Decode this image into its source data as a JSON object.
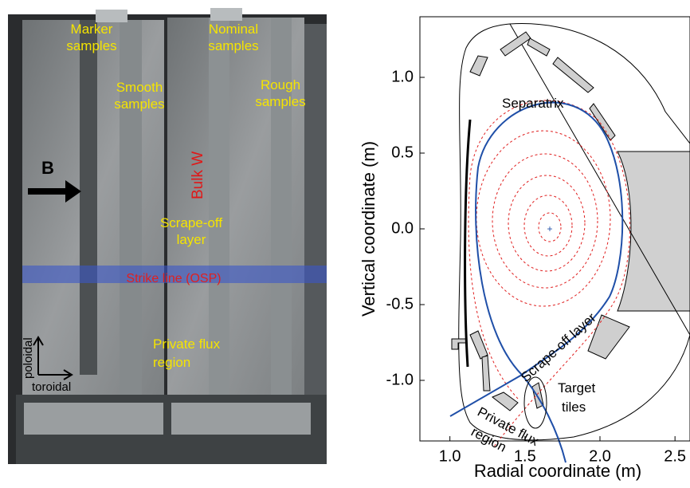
{
  "photo": {
    "labels": [
      [
        "Marker",
        "samples"
      ],
      [
        "Nominal",
        "samples"
      ],
      [
        "Smooth",
        "samples"
      ],
      [
        "Rough",
        "samples"
      ],
      [
        "Scrape-off",
        "layer"
      ],
      [
        "Private flux",
        "region"
      ]
    ],
    "bulk": "Bulk W",
    "field": "B",
    "strike": "Strike line (OSP)",
    "poloidal": "poloidal",
    "toroidal": "toroidal"
  },
  "plot": {
    "separatrix": "Separatrix",
    "sol": "Scrape-off layer",
    "pfr": [
      "Private flux",
      "region"
    ],
    "target": [
      "Target",
      "tiles"
    ]
  },
  "chart_data": {
    "type": "diagram",
    "xlabel": "Radial coordinate (m)",
    "ylabel": "Vertical coordinate (m)",
    "xlim": [
      0.8,
      2.6
    ],
    "ylim": [
      -1.4,
      1.4
    ],
    "xticks": [
      {
        "value": 1,
        "label": "1.0"
      },
      1.5,
      {
        "value": 2,
        "label": "2.0"
      },
      2.5
    ],
    "yticks": [
      {
        "value": 1,
        "label": "1.0"
      },
      0.5,
      {
        "value": 0,
        "label": "0.0"
      },
      -0.5,
      {
        "value": -1,
        "label": "-1.0"
      }
    ]
  }
}
